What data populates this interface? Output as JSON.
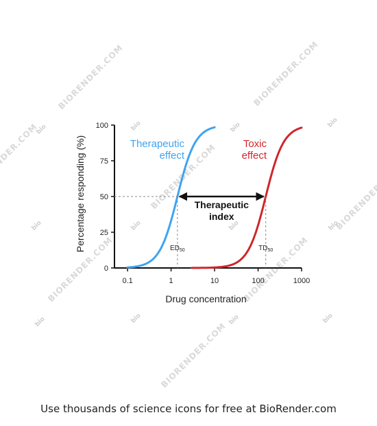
{
  "chart_data": {
    "type": "line",
    "title": "",
    "xlabel": "Drug concentration",
    "ylabel": "Percentage responding (%)",
    "x_scale": "log",
    "xlim": [
      0.05,
      1000
    ],
    "ylim": [
      0,
      100
    ],
    "x_ticks": [
      {
        "value": 0.1,
        "label": "0.1"
      },
      {
        "value": 1,
        "label": "1"
      },
      {
        "value": 10,
        "label": "10"
      },
      {
        "value": 100,
        "label": "100"
      },
      {
        "value": 1000,
        "label": "1000"
      }
    ],
    "y_ticks": [
      {
        "value": 0,
        "label": "0"
      },
      {
        "value": 25,
        "label": "25"
      },
      {
        "value": 50,
        "label": "50"
      },
      {
        "value": 75,
        "label": "75"
      },
      {
        "value": 100,
        "label": "100"
      }
    ],
    "grid": false,
    "series": [
      {
        "label_lines": [
          "Therapeutic",
          "effect"
        ],
        "color": "#3fa3f0",
        "x_range": [
          0.1,
          10
        ],
        "ec50": 1.4,
        "hill": 2.1
      },
      {
        "label_lines": [
          "Toxic",
          "effect"
        ],
        "color": "#d0262b",
        "x_range": [
          3,
          1000
        ],
        "ec50": 150,
        "hill": 2.1
      }
    ],
    "reference_level": 50,
    "markers": [
      {
        "base": "ED",
        "sub": "50",
        "x": 1.4
      },
      {
        "base": "TD",
        "sub": "50",
        "x": 150
      }
    ],
    "interval_annotation": {
      "from": 1.4,
      "to": 150,
      "at": 50,
      "label_lines": [
        "Therapeutic",
        "index"
      ]
    }
  },
  "watermark": {
    "brand": "BIORENDER.COM",
    "short": "bio"
  },
  "footer": {
    "text": "Use thousands of science icons for free at BioRender.com"
  }
}
